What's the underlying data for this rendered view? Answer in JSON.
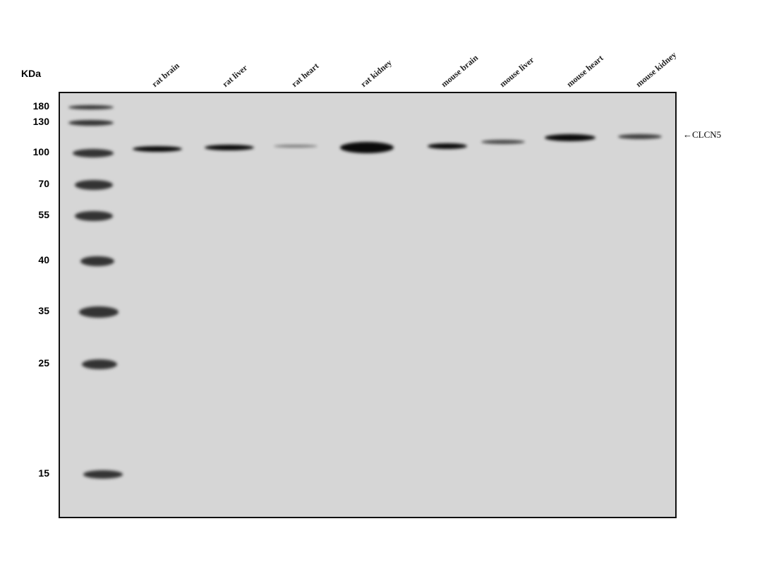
{
  "unit_label": "KDa",
  "markers": [
    "180",
    "130",
    "100",
    "70",
    "55",
    "40",
    "35",
    "25",
    "15"
  ],
  "lanes": [
    "rat brain",
    "rat liver",
    "rat heart",
    "rat kidney",
    "mouse brain",
    "mouse liver",
    "mouse heart",
    "mouse kidney"
  ],
  "target_label": "CLCN5",
  "colors": {
    "membrane": "#d6d6d6",
    "band": "#0a0a0a"
  }
}
